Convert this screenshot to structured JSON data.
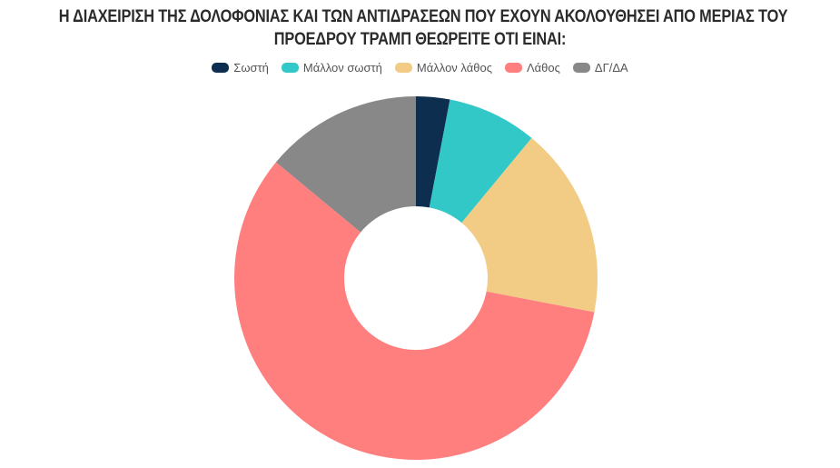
{
  "chart_data": {
    "type": "pie",
    "donut": true,
    "title": "Η ΔΙΑΧΕΙΡΙΣΗ ΤΗΣ ΔΟΛΟΦΟΝΙΑΣ ΚΑΙ ΤΩΝ ΑΝΤΙΔΡΑΣΕΩΝ ΠΟΥ ΕΧΟΥΝ ΑΚΟΛΟΥΘΗΣΕΙ ΑΠΟ ΜΕΡΙΑΣ ΤΟΥ ΠΡΟΕΔΡΟΥ ΤΡΑΜΠ ΘΕΩΡΕΙΤΕ ΟΤΙ ΕΙΝΑΙ:",
    "title_lines": [
      "Η ΔΙΑΧΕΙΡΙΣΗ ΤΗΣ ΔΟΛΟΦΟΝΙΑΣ ΚΑΙ ΤΩΝ ΑΝΤΙΔΡΑΣΕΩΝ ΠΟΥ ΕΧΟΥΝ ΑΚΟΛΟΥΘΗΣΕΙ ΑΠΟ ΜΕΡΙΑΣ ΤΟΥ",
      "ΠΡΟΕΔΡΟΥ ΤΡΑΜΠ ΘΕΩΡΕΙΤΕ ΟΤΙ ΕΙΝΑΙ:"
    ],
    "legend_position": "top",
    "categories": [
      "Σωστή",
      "Μάλλον σωστή",
      "Μάλλον λάθος",
      "Λάθος",
      "ΔΓ/ΔΑ"
    ],
    "values": [
      3,
      8,
      17,
      58,
      14
    ],
    "colors": [
      "#0d2e4e",
      "#33c8c8",
      "#f2cc85",
      "#ff7f7f",
      "#888888"
    ],
    "units": "%"
  },
  "legend": {
    "items": [
      {
        "label": "Σωστή",
        "color": "#0d2e4e"
      },
      {
        "label": "Μάλλον σωστή",
        "color": "#33c8c8"
      },
      {
        "label": "Μάλλον λάθος",
        "color": "#f2cc85"
      },
      {
        "label": "Λάθος",
        "color": "#ff7f7f"
      },
      {
        "label": "ΔΓ/ΔΑ",
        "color": "#888888"
      }
    ]
  }
}
